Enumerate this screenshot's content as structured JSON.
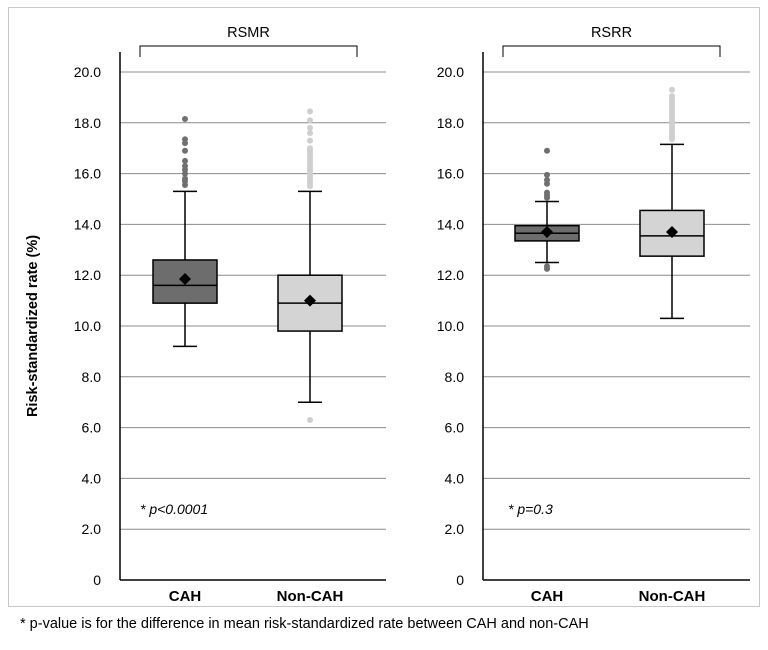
{
  "chart_data": [
    {
      "type": "box",
      "title": "RSMR",
      "ylabel": "Risk-standardized rate (%)",
      "ylim": [
        0,
        20
      ],
      "yticks": [
        "0",
        "2.0",
        "4.0",
        "6.0",
        "8.0",
        "10.0",
        "12.0",
        "14.0",
        "16.0",
        "18.0",
        "20.0"
      ],
      "grid": true,
      "annotation": "* p<0.0001",
      "categories": [
        "CAH",
        "Non-CAH"
      ],
      "boxes": [
        {
          "category": "CAH",
          "color": "#6d6d6d",
          "whisker_low": 9.2,
          "q1": 10.9,
          "median": 11.6,
          "q3": 12.6,
          "whisker_high": 15.3,
          "mean": 11.85,
          "outliers": [
            15.55,
            15.7,
            15.8,
            16.0,
            16.15,
            16.3,
            16.5,
            16.9,
            17.2,
            17.35,
            18.15
          ]
        },
        {
          "category": "Non-CAH",
          "color": "#d4d4d4",
          "whisker_low": 7.0,
          "q1": 9.8,
          "median": 10.9,
          "q3": 12.0,
          "whisker_high": 15.3,
          "mean": 11.0,
          "outliers": [
            6.3,
            15.5,
            15.6,
            15.7,
            15.8,
            15.9,
            16.0,
            16.1,
            16.2,
            16.3,
            16.4,
            16.5,
            16.6,
            16.7,
            16.8,
            16.9,
            17.0,
            17.3,
            17.6,
            17.8,
            18.1,
            18.45
          ]
        }
      ]
    },
    {
      "type": "box",
      "title": "RSRR",
      "ylim": [
        0,
        20
      ],
      "yticks": [
        "0",
        "2.0",
        "4.0",
        "6.0",
        "8.0",
        "10.0",
        "12.0",
        "14.0",
        "16.0",
        "18.0",
        "20.0"
      ],
      "grid": true,
      "annotation": "* p=0.3",
      "categories": [
        "CAH",
        "Non-CAH"
      ],
      "boxes": [
        {
          "category": "CAH",
          "color": "#6d6d6d",
          "whisker_low": 12.5,
          "q1": 13.35,
          "median": 13.65,
          "q3": 13.95,
          "whisker_high": 14.9,
          "mean": 13.7,
          "outliers": [
            12.25,
            12.35,
            15.05,
            15.15,
            15.25,
            15.6,
            15.75,
            15.95,
            16.9
          ]
        },
        {
          "category": "Non-CAH",
          "color": "#d4d4d4",
          "whisker_low": 10.3,
          "q1": 12.75,
          "median": 13.55,
          "q3": 14.55,
          "whisker_high": 17.15,
          "mean": 13.7,
          "outliers": [
            17.35,
            17.45,
            17.55,
            17.65,
            17.75,
            17.85,
            17.95,
            18.05,
            18.15,
            18.25,
            18.35,
            18.45,
            18.55,
            18.65,
            18.75,
            18.85,
            18.95,
            19.05,
            19.3
          ]
        }
      ]
    }
  ],
  "footnote": "* p-value is for the difference in mean risk-standardized rate between CAH and non-CAH"
}
